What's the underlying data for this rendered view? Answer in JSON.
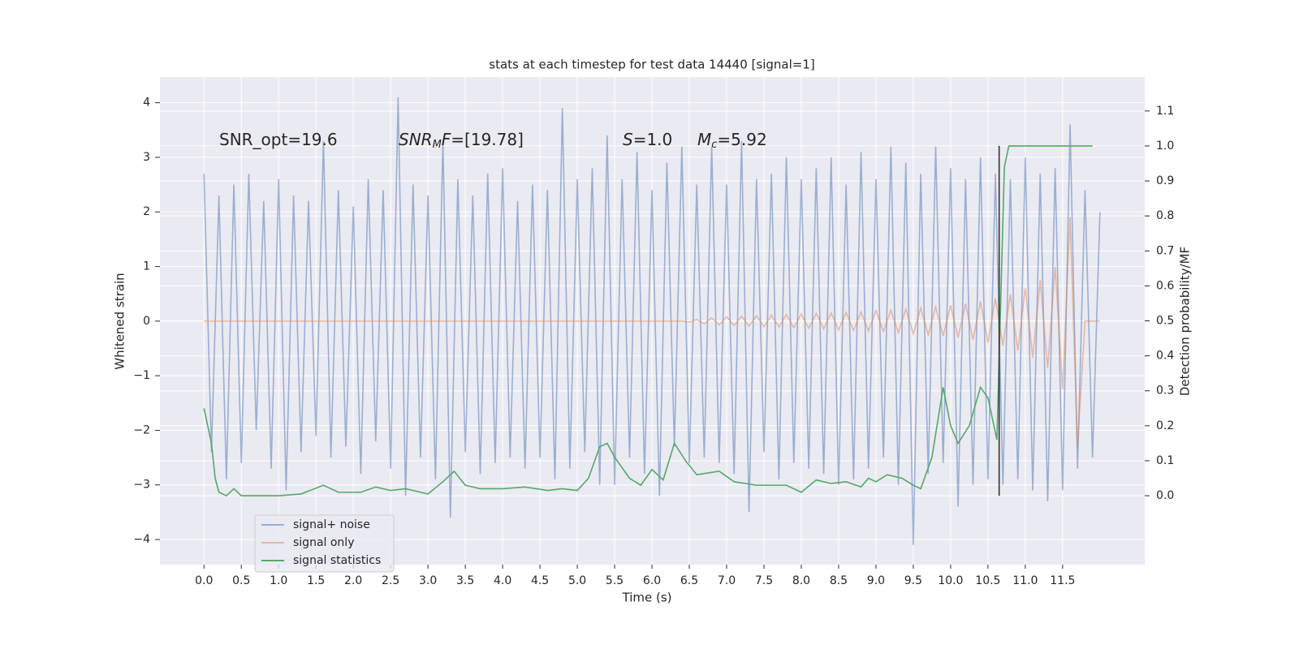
{
  "chart_data": {
    "type": "line",
    "title": "stats at each timestep for test data 14440 [signal=1]",
    "xlabel": "Time (s)",
    "ylabel": "Whitened strain",
    "y2label": "Detection probability/MF",
    "background": "#eaeaf2",
    "grid": true,
    "legend": "lower left",
    "xlim": [
      -0.59,
      12.6
    ],
    "ylim": [
      -4.46,
      4.47
    ],
    "y2lim": [
      -0.197,
      1.197
    ],
    "xticks": [
      {
        "value": 0,
        "label": "0.0"
      },
      0.5,
      {
        "value": 1,
        "label": "1.0"
      },
      1.5,
      {
        "value": 2,
        "label": "2.0"
      },
      2.5,
      {
        "value": 3,
        "label": "3.0"
      },
      3.5,
      {
        "value": 4,
        "label": "4.0"
      },
      4.5,
      {
        "value": 5,
        "label": "5.0"
      },
      5.5,
      {
        "value": 6,
        "label": "6.0"
      },
      6.5,
      {
        "value": 7,
        "label": "7.0"
      },
      7.5,
      {
        "value": 8,
        "label": "8.0"
      },
      8.5,
      {
        "value": 9,
        "label": "9.0"
      },
      9.5,
      {
        "value": 10,
        "label": "10.0"
      },
      10.5,
      {
        "value": 11,
        "label": "11.0"
      },
      11.5
    ],
    "yticks": [
      {
        "value": -4,
        "label": "−4"
      },
      {
        "value": -3,
        "label": "−3"
      },
      {
        "value": -2,
        "label": "−2"
      },
      {
        "value": -1,
        "label": "−1"
      },
      0,
      1,
      2,
      3,
      4
    ],
    "y2ticks": [
      {
        "value": 0,
        "label": "0.0"
      },
      0.1,
      0.2,
      0.3,
      0.4,
      0.5,
      0.6,
      0.7,
      0.8,
      0.9,
      {
        "value": 1,
        "label": "1.0"
      },
      1.1
    ],
    "annotations": [
      {
        "parts": [
          {
            "text": "SNR_opt=19.6",
            "style": "normal"
          }
        ]
      },
      {
        "parts": [
          {
            "text": "SNR",
            "style": "italic"
          },
          {
            "text": "M",
            "style": "italic-sub"
          },
          {
            "text": "F",
            "style": "italic"
          },
          {
            "text": "=[19.78]",
            "style": "normal"
          }
        ]
      },
      {
        "parts": [
          {
            "text": "S",
            "style": "italic"
          },
          {
            "text": "=1.0",
            "style": "normal"
          }
        ]
      },
      {
        "parts": [
          {
            "text": "M",
            "style": "italic"
          },
          {
            "text": "c",
            "style": "italic-sub"
          },
          {
            "text": "=5.92",
            "style": "normal"
          }
        ]
      }
    ],
    "vline": {
      "x": 10.65,
      "ymin": 0,
      "ymax": 1,
      "axis": "y2",
      "color": "#333333"
    },
    "series": [
      {
        "name": "signal+ noise",
        "color": "#4c72b0",
        "alpha": 0.5,
        "x": [
          0,
          0.1,
          0.2,
          0.3,
          0.4,
          0.5,
          0.6,
          0.7,
          0.8,
          0.9,
          1,
          1.1,
          1.2,
          1.3,
          1.4,
          1.5,
          1.6,
          1.7,
          1.8,
          1.9,
          2,
          2.1,
          2.2,
          2.3,
          2.4,
          2.5,
          2.6,
          2.7,
          2.8,
          2.9,
          3,
          3.1,
          3.2,
          3.3,
          3.4,
          3.5,
          3.6,
          3.7,
          3.8,
          3.9,
          4,
          4.1,
          4.2,
          4.3,
          4.4,
          4.5,
          4.6,
          4.7,
          4.8,
          4.9,
          5,
          5.1,
          5.2,
          5.3,
          5.4,
          5.5,
          5.6,
          5.7,
          5.8,
          5.9,
          6,
          6.1,
          6.2,
          6.3,
          6.4,
          6.5,
          6.6,
          6.7,
          6.8,
          6.9,
          7,
          7.1,
          7.2,
          7.3,
          7.4,
          7.5,
          7.6,
          7.7,
          7.8,
          7.9,
          8,
          8.1,
          8.2,
          8.3,
          8.4,
          8.5,
          8.6,
          8.7,
          8.8,
          8.9,
          9,
          9.1,
          9.2,
          9.3,
          9.4,
          9.5,
          9.6,
          9.7,
          9.8,
          9.9,
          10,
          10.1,
          10.2,
          10.3,
          10.4,
          10.5,
          10.6,
          10.7,
          10.8,
          10.9,
          11,
          11.1,
          11.2,
          11.3,
          11.4,
          11.5,
          11.6,
          11.7,
          11.8,
          11.9,
          12
        ],
        "values": [
          2.7,
          -2.4,
          2.3,
          -2.9,
          2.5,
          -2.6,
          2.7,
          -2.0,
          2.2,
          -2.7,
          2.6,
          -3.1,
          2.3,
          -2.4,
          2.2,
          -2.1,
          3.3,
          -2.5,
          2.4,
          -2.3,
          2.1,
          -2.8,
          2.6,
          -2.2,
          2.4,
          -2.7,
          4.1,
          -3.2,
          2.5,
          -2.5,
          2.3,
          -2.9,
          3.3,
          -3.6,
          2.6,
          -2.4,
          2.3,
          -2.8,
          2.7,
          -2.6,
          2.8,
          -2.5,
          2.2,
          -2.7,
          2.5,
          -2.5,
          2.4,
          -2.9,
          3.9,
          -2.7,
          2.6,
          -2.4,
          2.8,
          -3.0,
          3.4,
          -3.0,
          2.6,
          -2.5,
          3.1,
          -2.8,
          2.4,
          -3.2,
          2.9,
          -2.3,
          3.2,
          -2.6,
          2.5,
          -2.5,
          3.2,
          -2.6,
          2.5,
          -2.8,
          3.3,
          -3.5,
          2.6,
          -2.4,
          2.7,
          -2.9,
          3.0,
          -2.6,
          2.6,
          -2.7,
          2.8,
          -2.8,
          3.0,
          -3.0,
          2.5,
          -2.9,
          3.1,
          -2.7,
          2.6,
          -2.5,
          3.2,
          -3.0,
          2.9,
          -4.1,
          2.7,
          -2.8,
          3.2,
          -2.6,
          2.8,
          -3.4,
          2.6,
          -3.0,
          3.0,
          -2.9,
          2.7,
          -3.0,
          2.6,
          -2.9,
          3.0,
          -3.1,
          2.7,
          -3.3,
          2.8,
          -3.1,
          3.6,
          -2.7,
          2.4,
          -2.5,
          2.0
        ]
      },
      {
        "name": "signal only",
        "color": "#dd8452",
        "alpha": 0.5,
        "x": [
          0,
          0.1,
          0.2,
          0.3,
          0.4,
          0.5,
          0.6,
          0.7,
          0.8,
          0.9,
          1,
          1.1,
          1.2,
          1.3,
          1.4,
          1.5,
          1.6,
          1.7,
          1.8,
          1.9,
          2,
          2.1,
          2.2,
          2.3,
          2.4,
          2.5,
          2.6,
          2.7,
          2.8,
          2.9,
          3,
          3.1,
          3.2,
          3.3,
          3.4,
          3.5,
          3.6,
          3.7,
          3.8,
          3.9,
          4,
          4.1,
          4.2,
          4.3,
          4.4,
          4.5,
          4.6,
          4.7,
          4.8,
          4.9,
          5,
          5.1,
          5.2,
          5.3,
          5.4,
          5.5,
          5.6,
          5.7,
          5.8,
          5.9,
          6,
          6.1,
          6.2,
          6.3,
          6.4,
          6.5,
          6.6,
          6.7,
          6.8,
          6.9,
          7,
          7.1,
          7.2,
          7.3,
          7.4,
          7.5,
          7.6,
          7.7,
          7.8,
          7.9,
          8,
          8.1,
          8.2,
          8.3,
          8.4,
          8.5,
          8.6,
          8.7,
          8.8,
          8.9,
          9,
          9.1,
          9.2,
          9.3,
          9.4,
          9.5,
          9.6,
          9.7,
          9.8,
          9.9,
          10,
          10.1,
          10.2,
          10.3,
          10.4,
          10.5,
          10.6,
          10.7,
          10.8,
          10.9,
          11,
          11.1,
          11.2,
          11.3,
          11.4,
          11.5,
          11.6,
          11.7,
          11.8,
          11.9,
          12
        ],
        "values": [
          0,
          0,
          0,
          0,
          0,
          0,
          0,
          0,
          0,
          0,
          0,
          0,
          0,
          0,
          0,
          0,
          0,
          0,
          0,
          0,
          0,
          0,
          0,
          0,
          0,
          0,
          0,
          0,
          0,
          0,
          0,
          0,
          0,
          0,
          0,
          0,
          0,
          0,
          0,
          0,
          0,
          0,
          0,
          0,
          0,
          0,
          0,
          0,
          0,
          0,
          0,
          0,
          0,
          0,
          0,
          0,
          0,
          0,
          0,
          0,
          0,
          0,
          0,
          0,
          0,
          -0.02,
          0.03,
          -0.05,
          0.06,
          -0.07,
          0.08,
          -0.08,
          0.09,
          -0.09,
          0.1,
          -0.1,
          0.11,
          -0.11,
          0.12,
          -0.12,
          0.13,
          -0.13,
          0.14,
          -0.14,
          0.15,
          -0.16,
          0.16,
          -0.17,
          0.17,
          -0.18,
          0.19,
          -0.19,
          0.2,
          -0.21,
          0.22,
          -0.23,
          0.24,
          -0.25,
          0.26,
          -0.27,
          0.29,
          -0.3,
          0.32,
          -0.34,
          0.36,
          -0.39,
          0.42,
          -0.45,
          0.49,
          -0.54,
          0.6,
          -0.67,
          0.75,
          -0.86,
          1.0,
          -1.25,
          1.9,
          -2.3,
          0,
          0,
          0
        ]
      },
      {
        "name": "signal statistics",
        "color": "#55a868",
        "alpha": 1,
        "axis": "y2",
        "x": [
          0,
          0.1,
          0.15,
          0.2,
          0.3,
          0.4,
          0.5,
          0.7,
          1,
          1.3,
          1.6,
          1.8,
          2.1,
          2.3,
          2.5,
          2.7,
          3,
          3.2,
          3.35,
          3.5,
          3.7,
          4,
          4.3,
          4.6,
          4.8,
          5,
          5.15,
          5.3,
          5.4,
          5.5,
          5.7,
          5.85,
          6,
          6.15,
          6.3,
          6.45,
          6.6,
          6.9,
          7.1,
          7.4,
          7.8,
          8,
          8.2,
          8.4,
          8.6,
          8.8,
          8.9,
          9,
          9.15,
          9.35,
          9.5,
          9.6,
          9.75,
          9.9,
          10,
          10.1,
          10.25,
          10.4,
          10.5,
          10.62,
          10.72,
          10.78,
          11,
          11.5,
          11.9
        ],
        "values": [
          0.25,
          0.15,
          0.05,
          0.01,
          0.0,
          0.02,
          0.0,
          0.0,
          0.0,
          0.005,
          0.03,
          0.01,
          0.01,
          0.025,
          0.015,
          0.02,
          0.005,
          0.04,
          0.07,
          0.03,
          0.02,
          0.02,
          0.025,
          0.015,
          0.02,
          0.015,
          0.05,
          0.14,
          0.15,
          0.11,
          0.05,
          0.03,
          0.075,
          0.045,
          0.15,
          0.1,
          0.06,
          0.07,
          0.04,
          0.03,
          0.03,
          0.01,
          0.045,
          0.035,
          0.04,
          0.025,
          0.05,
          0.04,
          0.06,
          0.05,
          0.03,
          0.02,
          0.11,
          0.31,
          0.2,
          0.15,
          0.2,
          0.31,
          0.28,
          0.16,
          0.94,
          1.0,
          1.0,
          1.0,
          1.0
        ]
      }
    ]
  }
}
